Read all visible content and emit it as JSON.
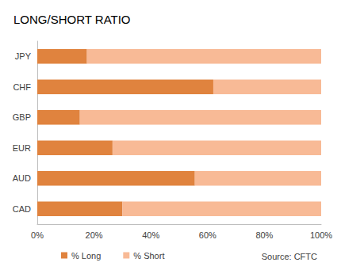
{
  "chart_data": {
    "type": "bar",
    "title": "LONG/SHORT RATIO",
    "orientation": "horizontal",
    "stacked": true,
    "categories": [
      "JPY",
      "CHF",
      "GBP",
      "EUR",
      "AUD",
      "CAD"
    ],
    "series": [
      {
        "name": "% Long",
        "color": "#e0833e",
        "values": [
          17.5,
          62,
          15,
          26.5,
          55.5,
          30
        ]
      },
      {
        "name": "% Short",
        "color": "#f8ba96",
        "values": [
          82.5,
          38,
          85,
          73.5,
          44.5,
          70
        ]
      }
    ],
    "xlim": [
      0,
      100
    ],
    "xticks": [
      {
        "value": 0,
        "label": "0%"
      },
      {
        "value": 20,
        "label": "20%"
      },
      {
        "value": 40,
        "label": "40%"
      },
      {
        "value": 60,
        "label": "60%"
      },
      {
        "value": 80,
        "label": "80%"
      },
      {
        "value": 100,
        "label": "100%"
      }
    ],
    "grid": false,
    "legend": "bottom",
    "annotations": [
      "Source: CFTC"
    ]
  }
}
